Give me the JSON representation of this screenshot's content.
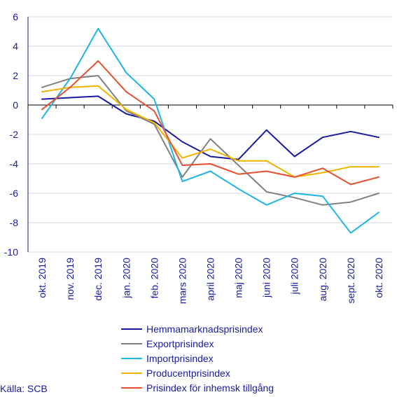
{
  "chart_data": {
    "type": "line",
    "title": "",
    "xlabel": "",
    "ylabel": "",
    "categories": [
      "okt. 2019",
      "nov. 2019",
      "dec. 2019",
      "jan. 2020",
      "feb. 2020",
      "mars 2020",
      "april 2020",
      "maj 2020",
      "juni 2020",
      "juli 2020",
      "aug. 2020",
      "sept. 2020",
      "okt. 2020"
    ],
    "ylim": [
      -10,
      6
    ],
    "yticks": [
      -10,
      -8,
      -6,
      -4,
      -2,
      0,
      2,
      4,
      6
    ],
    "grid": "horizontal",
    "legend_position": "bottom",
    "series": [
      {
        "name": "Hemmamarknadsprisindex",
        "color": "#1a1aa0",
        "values": [
          0.4,
          0.5,
          0.6,
          -0.6,
          -1.1,
          -2.5,
          -3.5,
          -3.7,
          -1.7,
          -3.5,
          -2.2,
          -1.8,
          -2.2
        ]
      },
      {
        "name": "Exportprisindex",
        "color": "#808080",
        "values": [
          1.2,
          1.8,
          2.0,
          -0.4,
          -1.3,
          -4.9,
          -2.3,
          -4.1,
          -5.9,
          -6.3,
          -6.8,
          -6.6,
          -6.0
        ]
      },
      {
        "name": "Importprisindex",
        "color": "#1eb4e6",
        "values": [
          -0.9,
          1.8,
          5.2,
          2.2,
          0.4,
          -5.2,
          -4.5,
          -5.7,
          -6.8,
          -6.0,
          -6.2,
          -8.7,
          -7.3
        ]
      },
      {
        "name": "Producentprisindex",
        "color": "#f0b400",
        "values": [
          0.9,
          1.2,
          1.3,
          -0.3,
          -1.2,
          -3.6,
          -3.0,
          -3.8,
          -3.8,
          -4.9,
          -4.6,
          -4.2,
          -4.2
        ]
      },
      {
        "name": "Prisindex för inhemsk tillgång",
        "color": "#e65032",
        "values": [
          -0.3,
          1.2,
          3.0,
          0.9,
          -0.4,
          -4.1,
          -4.0,
          -4.7,
          -4.5,
          -4.9,
          -4.3,
          -5.4,
          -4.9
        ]
      }
    ]
  },
  "source_label": "Källa: SCB"
}
